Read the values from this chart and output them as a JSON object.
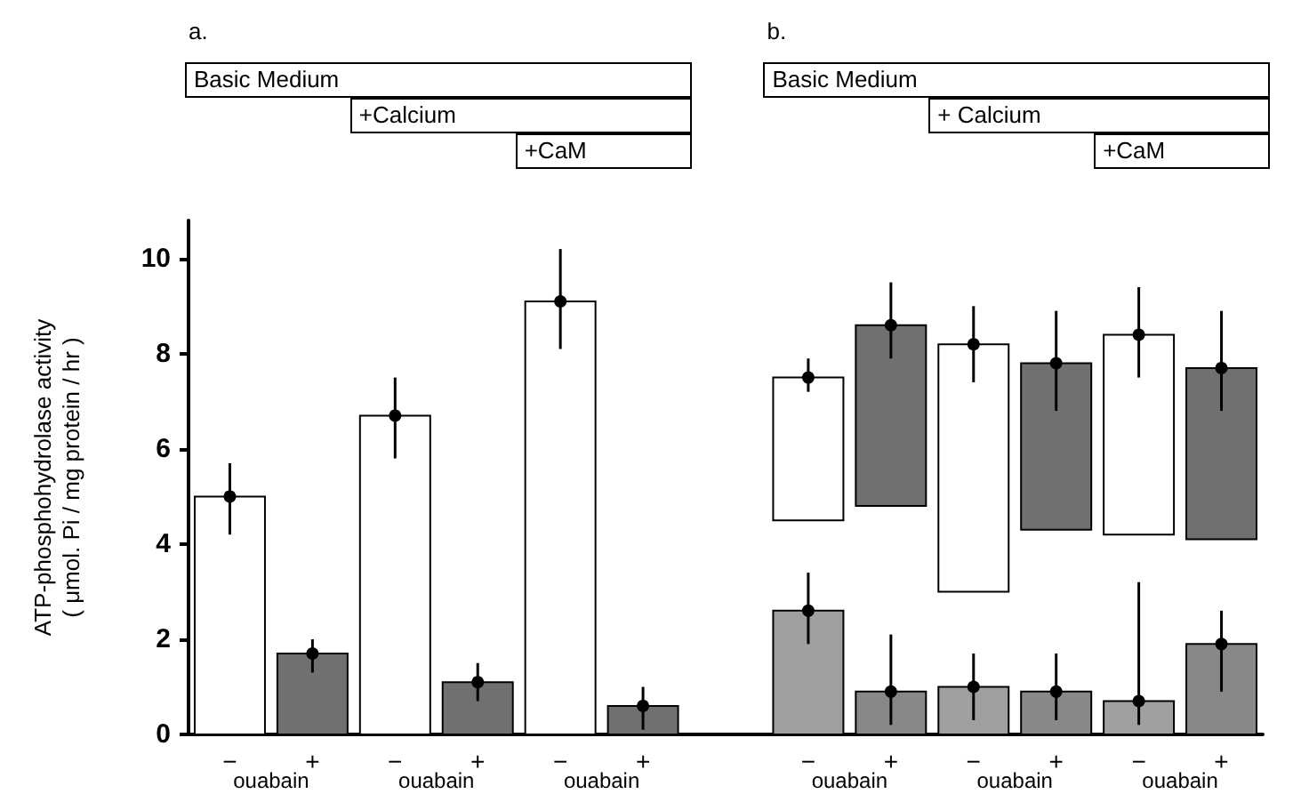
{
  "chart_data": {
    "type": "bar",
    "ylabel": "ATP-phosphohydrolase activity\n( μmol. Pi / mg protein / hr )",
    "categories": [
      "−",
      "+",
      "−",
      "+",
      "−",
      "+",
      null,
      "−",
      "+",
      "−",
      "+",
      "−",
      "+"
    ],
    "ylim": [
      0,
      10.8
    ],
    "yticks": [
      0,
      2,
      4,
      6,
      8,
      10
    ],
    "grid": false,
    "marker": "circle",
    "annotations": [
      "a.",
      "Basic  Medium",
      "+Calcium",
      "+CaM",
      "b.",
      "Basic  Medium",
      "+ Calcium",
      "+CaM",
      "ouabain",
      "ouabain",
      "ouabain",
      "ouabain",
      "ouabain",
      "ouabain"
    ],
    "series": [
      {
        "color": "#ffffff",
        "values": [
          5.0,
          null,
          6.7,
          null,
          9.1,
          null,
          null,
          3.0,
          null,
          5.2,
          null,
          4.2,
          null
        ],
        "base": [
          0,
          null,
          0,
          null,
          0,
          null,
          null,
          4.5,
          null,
          3.0,
          null,
          4.2,
          null
        ]
      },
      {
        "color": "#707070",
        "values": [
          null,
          1.7,
          null,
          1.1,
          null,
          0.6,
          null,
          null,
          3.8,
          null,
          3.5,
          null,
          3.6
        ],
        "base": [
          null,
          0,
          null,
          0,
          null,
          0,
          null,
          null,
          4.8,
          null,
          4.3,
          null,
          4.1
        ]
      },
      {
        "color": "#a0a0a0",
        "values": [
          null,
          null,
          null,
          null,
          null,
          null,
          null,
          2.6,
          null,
          1.0,
          null,
          0.7,
          null
        ]
      },
      {
        "color": "#888888",
        "values": [
          null,
          null,
          null,
          null,
          null,
          null,
          null,
          null,
          0.9,
          null,
          0.9,
          null,
          1.9
        ]
      },
      {
        "type": "scatter",
        "color": "#000000",
        "values": [
          5.0,
          1.7,
          6.7,
          1.1,
          9.1,
          0.6,
          null,
          7.5,
          8.6,
          8.2,
          7.8,
          8.4,
          7.7
        ],
        "errors": [
          [
            4.2,
            5.7
          ],
          [
            1.3,
            2.0
          ],
          [
            5.8,
            7.5
          ],
          [
            0.7,
            1.5
          ],
          [
            8.1,
            10.2
          ],
          [
            0.1,
            1.0
          ],
          null,
          [
            7.2,
            7.9
          ],
          [
            7.9,
            9.5
          ],
          [
            7.4,
            9.0
          ],
          [
            6.8,
            8.9
          ],
          [
            7.5,
            9.4
          ],
          [
            6.8,
            8.9
          ]
        ]
      },
      {
        "type": "scatter",
        "color": "#000000",
        "values": [
          null,
          null,
          null,
          null,
          null,
          null,
          null,
          2.6,
          0.9,
          1.0,
          0.9,
          0.7,
          1.9
        ],
        "errors": [
          null,
          null,
          null,
          null,
          null,
          null,
          null,
          [
            1.9,
            3.4
          ],
          [
            0.2,
            2.1
          ],
          [
            0.3,
            1.7
          ],
          [
            0.3,
            1.7
          ],
          [
            0.2,
            3.2
          ],
          [
            0.9,
            2.6
          ]
        ]
      }
    ]
  }
}
